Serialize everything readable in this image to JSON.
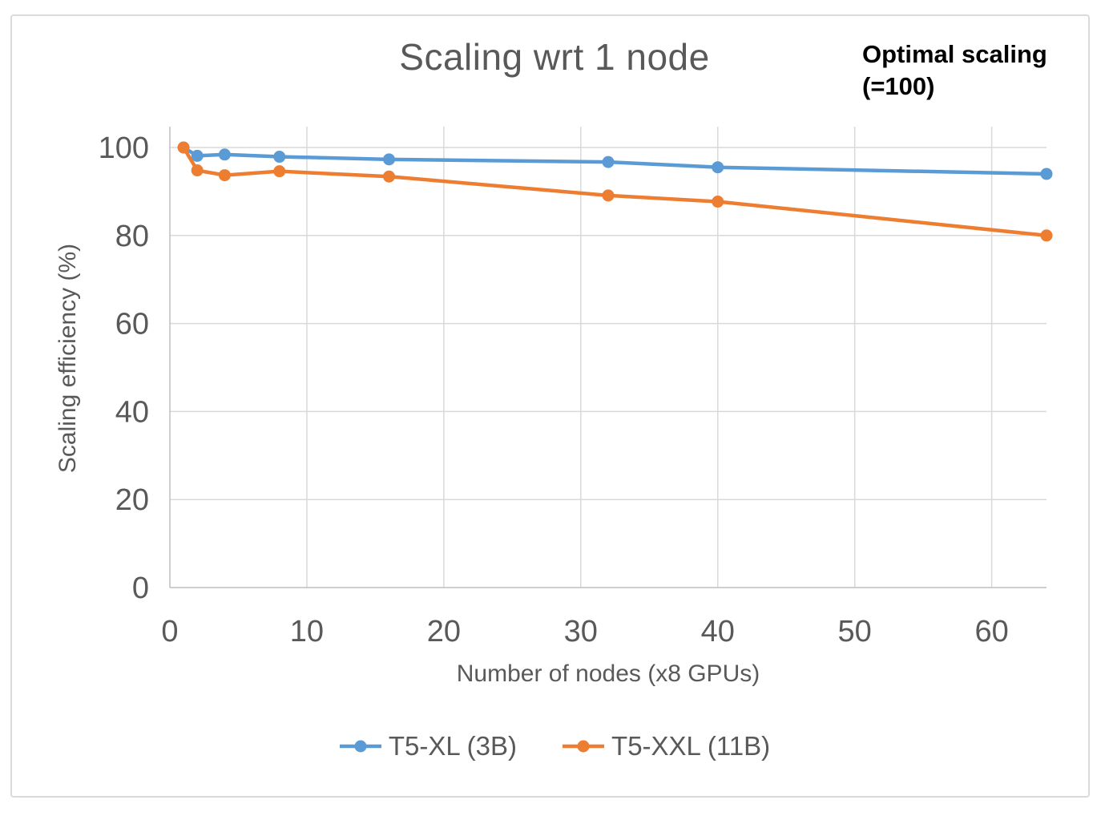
{
  "chart_title": "Scaling wrt 1 node",
  "annotation": {
    "line1": "Optimal scaling",
    "line2": "(=100)"
  },
  "y_axis_title": "Scaling efficiency (%)",
  "x_axis_title": "Number of nodes (x8 GPUs)",
  "colors": {
    "series_blue": "#5B9BD5",
    "series_orange": "#ED7D31",
    "text_gray": "#595959",
    "gridline": "#D9D9D9",
    "axis_line": "#BFBFBF",
    "frame_border": "#DADADA",
    "annotation_text": "#000000"
  },
  "chart_data": {
    "type": "line",
    "title": "Scaling wrt 1 node",
    "xlabel": "Number of nodes (x8 GPUs)",
    "ylabel": "Scaling efficiency (%)",
    "x": [
      1,
      2,
      4,
      8,
      16,
      32,
      40,
      64
    ],
    "series": [
      {
        "name": "T5-XL (3B)",
        "color": "#5B9BD5",
        "values": [
          100,
          98.1,
          98.4,
          97.9,
          97.3,
          96.7,
          95.5,
          94
        ]
      },
      {
        "name": "T5-XXL (11B)",
        "color": "#ED7D31",
        "values": [
          100,
          94.8,
          93.7,
          94.6,
          93.4,
          89.1,
          87.7,
          80
        ]
      }
    ],
    "x_ticks": [
      0,
      10,
      20,
      30,
      40,
      50,
      60
    ],
    "y_ticks": [
      0,
      20,
      40,
      60,
      80,
      100
    ],
    "xlim": [
      0,
      64
    ],
    "ylim": [
      0,
      104.7
    ],
    "grid": true,
    "legend_position": "bottom",
    "annotation": "Optimal scaling (=100)"
  },
  "legend": {
    "items": [
      {
        "label": "T5-XL (3B)",
        "color": "#5B9BD5"
      },
      {
        "label": "T5-XXL (11B)",
        "color": "#ED7D31"
      }
    ]
  }
}
